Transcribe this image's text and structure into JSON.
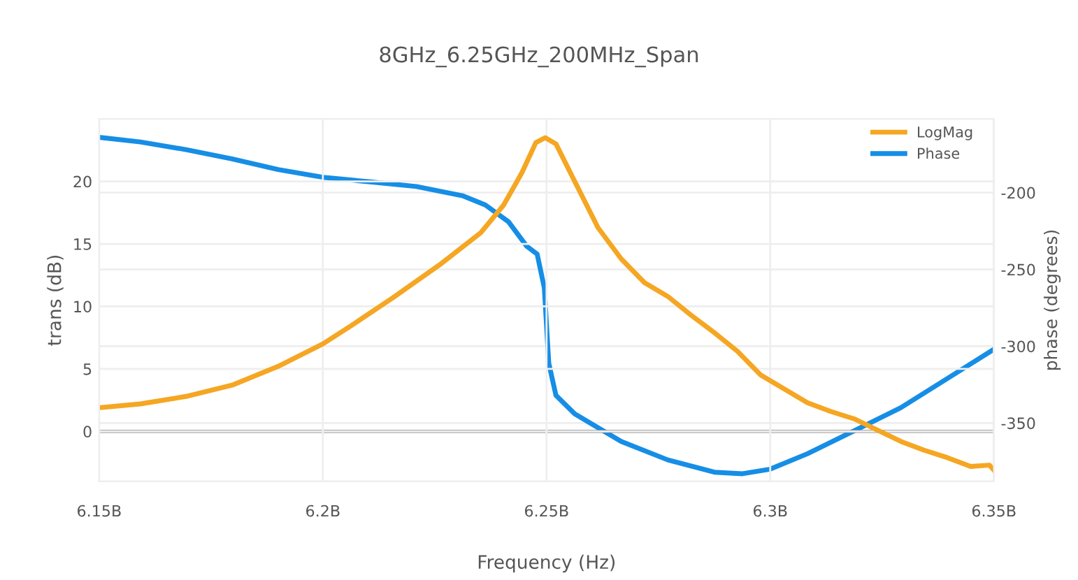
{
  "chart_data": {
    "type": "line",
    "title": "8GHz_6.25GHz_200MHz_Span",
    "xlabel": "Frequency (Hz)",
    "ylabel": "trans (dB)",
    "y2label": "phase (degrees)",
    "xlim": [
      6150000000,
      6350000000
    ],
    "xticks": [
      {
        "value": 6150000000,
        "label": "6.15B"
      },
      {
        "value": 6200000000,
        "label": "6.2B"
      },
      {
        "value": 6250000000,
        "label": "6.25B"
      },
      {
        "value": 6300000000,
        "label": "6.3B"
      },
      {
        "value": 6350000000,
        "label": "6.35B"
      }
    ],
    "ylim": [
      -4,
      25
    ],
    "yticks": [
      0,
      5,
      10,
      15,
      20
    ],
    "y2lim": [
      -388,
      -152
    ],
    "y2ticks": [
      -200,
      -250,
      -300,
      -350
    ],
    "grid": true,
    "legend": "top right",
    "ref_lines": [
      {
        "axis": "y",
        "value": 0,
        "color": "#888888"
      }
    ],
    "series": [
      {
        "name": "LogMag",
        "color": "#f5a623",
        "x": [
          6150000000,
          6159200000,
          6169400000,
          6179700000,
          6190000000,
          6200000000,
          6206500000,
          6215700000,
          6226000000,
          6235300000,
          6240400000,
          6244500000,
          6247600000,
          6249700000,
          6252100000,
          6256300000,
          6261500000,
          6266700000,
          6271900000,
          6277100000,
          6282300000,
          6287500000,
          6292700000,
          6297900000,
          6303100000,
          6308300000,
          6313500000,
          6318800000,
          6324000000,
          6329200000,
          6334400000,
          6339600000,
          6344800000,
          6349000000,
          6350000000
        ],
        "values": [
          1.9,
          2.2,
          2.8,
          3.7,
          5.2,
          7.0,
          8.5,
          10.7,
          13.3,
          15.9,
          18.1,
          20.7,
          23.1,
          23.5,
          23.0,
          20.0,
          16.3,
          13.8,
          11.9,
          10.8,
          9.3,
          7.9,
          6.4,
          4.5,
          3.4,
          2.3,
          1.6,
          1.0,
          0.1,
          -0.8,
          -1.5,
          -2.1,
          -2.8,
          -2.7,
          -3.1
        ]
      },
      {
        "name": "Phase",
        "color": "#168ee6",
        "axis": "y2",
        "x": [
          6150000000,
          6159200000,
          6169400000,
          6179700000,
          6190000000,
          6200000000,
          6210600000,
          6220900000,
          6231200000,
          6236300000,
          6241500000,
          6245600000,
          6247900000,
          6249500000,
          6250500000,
          6252100000,
          6256300000,
          6261500000,
          6266700000,
          6277100000,
          6287500000,
          6293800000,
          6300000000,
          6308300000,
          6318800000,
          6329200000,
          6339600000,
          6350000000
        ],
        "values": [
          -164,
          -167,
          -172,
          -178,
          -185,
          -190,
          -193,
          -196,
          -202,
          -208,
          -219,
          -235,
          -240,
          -262,
          -311,
          -332,
          -344,
          -353,
          -362,
          -374,
          -382,
          -383,
          -380,
          -370,
          -355,
          -340,
          -321,
          -302
        ]
      }
    ]
  }
}
